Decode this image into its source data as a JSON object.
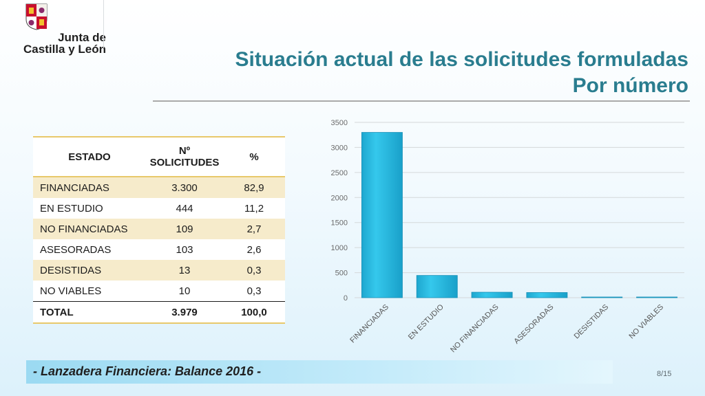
{
  "logo": {
    "line1": "Junta de",
    "line2": "Castilla y León"
  },
  "title": {
    "line1": "Situación actual de las solicitudes formuladas",
    "line2": "Por número"
  },
  "table": {
    "headers": {
      "estado": "ESTADO",
      "num_line1": "Nº",
      "num_line2": "SOLICITUDES",
      "pct": "%"
    },
    "rows": [
      {
        "estado": "FINANCIADAS",
        "num": "3.300",
        "pct": "82,9"
      },
      {
        "estado": "EN ESTUDIO",
        "num": "444",
        "pct": "11,2"
      },
      {
        "estado": "NO FINANCIADAS",
        "num": "109",
        "pct": "2,7"
      },
      {
        "estado": "ASESORADAS",
        "num": "103",
        "pct": "2,6"
      },
      {
        "estado": "DESISTIDAS",
        "num": "13",
        "pct": "0,3"
      },
      {
        "estado": "NO VIABLES",
        "num": "10",
        "pct": "0,3"
      }
    ],
    "total": {
      "estado": "TOTAL",
      "num": "3.979",
      "pct": "100,0"
    }
  },
  "chart_data": {
    "type": "bar",
    "categories": [
      "FINANCIADAS",
      "EN ESTUDIO",
      "NO FINANCIADAS",
      "ASESORADAS",
      "DESISTIDAS",
      "NO VIABLES"
    ],
    "values": [
      3300,
      444,
      109,
      103,
      13,
      10
    ],
    "ylim": [
      0,
      3500
    ],
    "yticks": [
      0,
      500,
      1000,
      1500,
      2000,
      2500,
      3000,
      3500
    ],
    "grid": true,
    "bar_color": "#2bbde3"
  },
  "footer": {
    "text": "- Lanzadera Financiera: Balance 2016 -",
    "page": "8/15"
  },
  "colors": {
    "title": "#2a7d8f",
    "table_shade": "#f6ebcb",
    "table_rule": "#e8c86a"
  }
}
